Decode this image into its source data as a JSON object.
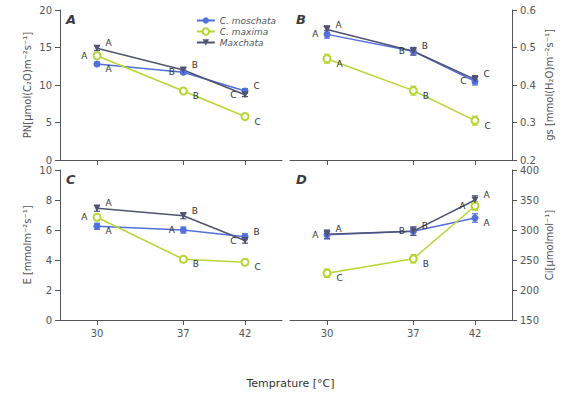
{
  "chart_data": [
    {
      "type": "line",
      "title": "A",
      "ylabel": "PN[μmol(C₂O)m⁻²s⁻¹]",
      "x": [
        30,
        37,
        42
      ],
      "xlim": [
        27,
        45
      ],
      "xticks": [
        30,
        37,
        42
      ],
      "ylim": [
        0,
        20
      ],
      "yticks": [
        0,
        5,
        10,
        15,
        20
      ],
      "grid": false,
      "legend": "upper right",
      "tick_labels": "y",
      "series": [
        {
          "name": "C. moschata",
          "marker": "circle",
          "values": [
            12.8,
            11.7,
            9.2
          ],
          "yerr": [
            0.25,
            0.25,
            0.3
          ],
          "annotations": [
            "A",
            "B",
            "C"
          ]
        },
        {
          "name": "C. maxima",
          "marker": "open_circle",
          "values": [
            13.9,
            9.2,
            5.8
          ],
          "yerr": [
            0.3,
            0.3,
            0.25
          ],
          "annotations": [
            "A",
            "B",
            "C"
          ]
        },
        {
          "name": "Maxchata",
          "marker": "triangle_down",
          "values": [
            14.9,
            12.0,
            8.7
          ],
          "yerr": [
            0.3,
            0.25,
            0.25
          ],
          "annotations": [
            "A",
            "B",
            "C"
          ]
        }
      ]
    },
    {
      "type": "line",
      "title": "B",
      "ylabel": "gs [mmol(H₂O)m⁻²s⁻¹]",
      "x": [
        30,
        37,
        42
      ],
      "xlim": [
        27,
        45
      ],
      "xticks": [
        30,
        37,
        42
      ],
      "ylim": [
        0.2,
        0.6
      ],
      "yticks": [
        0.2,
        0.3,
        0.4,
        0.5,
        0.6
      ],
      "grid": false,
      "tick_labels": "y",
      "series": [
        {
          "name": "C. moschata",
          "marker": "circle",
          "values": [
            0.535,
            0.49,
            0.41
          ],
          "yerr": [
            0.01,
            0.01,
            0.01
          ],
          "annotations": [
            "A",
            "B",
            "C"
          ]
        },
        {
          "name": "C. maxima",
          "marker": "open_circle",
          "values": [
            0.47,
            0.385,
            0.305
          ],
          "yerr": [
            0.012,
            0.012,
            0.012
          ],
          "annotations": [
            "A",
            "B",
            "C"
          ]
        },
        {
          "name": "Maxchata",
          "marker": "triangle_down",
          "values": [
            0.548,
            0.49,
            0.415
          ],
          "yerr": [
            0.01,
            0.01,
            0.01
          ],
          "annotations": [
            "A",
            "B",
            "C"
          ]
        }
      ]
    },
    {
      "type": "line",
      "title": "C",
      "ylabel": "E [mmolm⁻²s⁻¹]",
      "xlabel": "Temprature [°C]",
      "x": [
        30,
        37,
        42
      ],
      "xlim": [
        27,
        45
      ],
      "xticks": [
        30,
        37,
        42
      ],
      "ylim": [
        0,
        10
      ],
      "yticks": [
        0,
        2,
        4,
        6,
        8,
        10
      ],
      "grid": false,
      "series": [
        {
          "name": "C. moschata",
          "marker": "circle",
          "values": [
            6.25,
            6.0,
            5.55
          ],
          "yerr": [
            0.2,
            0.2,
            0.2
          ],
          "annotations": [
            "A",
            "A",
            "B"
          ]
        },
        {
          "name": "C. maxima",
          "marker": "open_circle",
          "values": [
            6.85,
            4.05,
            3.85
          ],
          "yerr": [
            0.18,
            0.15,
            0.15
          ],
          "annotations": [
            "A",
            "B",
            "C"
          ]
        },
        {
          "name": "Maxchata",
          "marker": "triangle_down",
          "values": [
            7.45,
            6.95,
            5.3
          ],
          "yerr": [
            0.2,
            0.2,
            0.18
          ],
          "annotations": [
            "A",
            "B",
            "C"
          ]
        }
      ]
    },
    {
      "type": "line",
      "title": "D",
      "ylabel": "Ci[μmolmol⁻¹]",
      "x": [
        30,
        37,
        42
      ],
      "xlim": [
        27,
        45
      ],
      "xticks": [
        30,
        37,
        42
      ],
      "ylim": [
        150,
        400
      ],
      "yticks": [
        150,
        200,
        250,
        300,
        350,
        400
      ],
      "grid": false,
      "series": [
        {
          "name": "C. moschata",
          "marker": "circle",
          "values": [
            292,
            298,
            320
          ],
          "yerr": [
            7,
            7,
            7
          ],
          "annotations": [
            "A",
            "B",
            "A"
          ]
        },
        {
          "name": "C. maxima",
          "marker": "open_circle",
          "values": [
            228,
            252,
            340
          ],
          "yerr": [
            7,
            7,
            7
          ],
          "annotations": [
            "C",
            "B",
            "A"
          ]
        },
        {
          "name": "Maxchata",
          "marker": "triangle_down",
          "values": [
            293,
            298,
            350
          ],
          "yerr": [
            7,
            7,
            7
          ],
          "annotations": [
            "A",
            "B",
            "A"
          ]
        }
      ]
    }
  ]
}
